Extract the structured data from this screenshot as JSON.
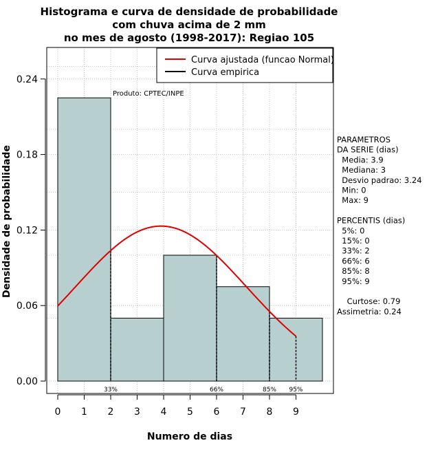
{
  "chart_data": {
    "type": "bar",
    "title_lines": [
      "Histograma e curva de densidade de probabilidade",
      "com chuva acima de 2 mm",
      "no mes de agosto (1998-2017): Regiao 105"
    ],
    "xlabel": "Numero de dias",
    "ylabel": "Densidade de probabilidade",
    "xlim": [
      -0.3,
      10.3
    ],
    "ylim": [
      0,
      0.26
    ],
    "xticks": [
      0,
      1,
      2,
      3,
      4,
      5,
      6,
      7,
      8,
      9
    ],
    "yticks": [
      0.0,
      0.06,
      0.12,
      0.18,
      0.24
    ],
    "ytick_labels": [
      "0.00",
      "0.06",
      "0.12",
      "0.18",
      "0.24"
    ],
    "bins": [
      {
        "x0": 0,
        "x1": 2,
        "density": 0.225
      },
      {
        "x0": 2,
        "x1": 4,
        "density": 0.05
      },
      {
        "x0": 4,
        "x1": 6,
        "density": 0.1
      },
      {
        "x0": 6,
        "x1": 8,
        "density": 0.075
      },
      {
        "x0": 8,
        "x1": 10,
        "density": 0.05
      }
    ],
    "normal_curve": {
      "mean": 3.9,
      "sd": 3.24,
      "x_range": [
        0,
        9
      ],
      "color": "#e00000"
    },
    "percentile_markers": [
      {
        "x": 2,
        "label": "33%"
      },
      {
        "x": 6,
        "label": "66%"
      },
      {
        "x": 8,
        "label": "85%"
      },
      {
        "x": 9,
        "label": "95%"
      }
    ],
    "legend": [
      {
        "label": "Curva ajustada (funcao Normal)",
        "color": "#e00000"
      },
      {
        "label": "Curva empirica",
        "color": "#000000"
      }
    ],
    "annotation": "Produto: CPTEC/INPE",
    "bar_color": "#b8cfcf",
    "side_panel": [
      "PARAMETROS",
      "DA SERIE (dias)",
      "  Media: 3.9",
      "  Mediana: 3",
      "  Desvio padrao: 3.24",
      "  Min: 0",
      "  Max: 9",
      "",
      "PERCENTIS (dias)",
      "  5%: 0",
      "  15%: 0",
      "  33%: 2",
      "  66%: 6",
      "  85%: 8",
      "  95%: 9",
      "",
      "    Curtose: 0.79",
      "Assimetria: 0.24"
    ]
  }
}
